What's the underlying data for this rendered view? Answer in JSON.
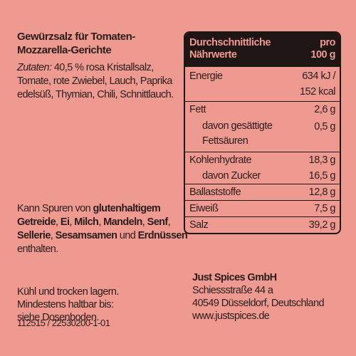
{
  "title": [
    "Gewürzsalz für Tomaten-",
    "Mozzarella-Gerichte"
  ],
  "ingredients": {
    "label": "Zutaten:",
    "lines": [
      " 40,5 % rosa Kristallsalz,",
      "Tomate, rote Zwiebel, Lauch, Paprika",
      "edelsüß, Thymian, Chili, Schnittlauch."
    ]
  },
  "allergens": {
    "segments": [
      {
        "t": "Kann Spuren von ",
        "b": false
      },
      {
        "t": "glutenhaltigem",
        "b": true
      },
      {
        "t": " ",
        "b": false
      },
      {
        "t": "Getreide",
        "b": true
      },
      {
        "t": ", ",
        "b": false
      },
      {
        "t": "Ei",
        "b": true
      },
      {
        "t": ", ",
        "b": false
      },
      {
        "t": "Milch",
        "b": true
      },
      {
        "t": ", ",
        "b": false
      },
      {
        "t": "Mandeln",
        "b": true
      },
      {
        "t": ", ",
        "b": false
      },
      {
        "t": "Senf",
        "b": true
      },
      {
        "t": ", ",
        "b": false
      },
      {
        "t": "Sellerie",
        "b": true
      },
      {
        "t": ", ",
        "b": false
      },
      {
        "t": "Sesamsamen",
        "b": true
      },
      {
        "t": " und ",
        "b": false
      },
      {
        "t": "Erdnüssen",
        "b": true
      },
      {
        "t": " enthalten.",
        "b": false
      }
    ]
  },
  "storage": [
    "Kühl und trocken lagern.",
    "Mindestens haltbar bis:",
    "siehe Dosenboden."
  ],
  "code": "112515 / 22530200-1-01",
  "company": {
    "name": "Just Spices GmbH",
    "street": "Schiessstraße 44 a",
    "city": "40549 Düsseldorf, Deutschland",
    "web": "www.justspices.de"
  },
  "nutrition": {
    "header_left": [
      "Durchschnittliche",
      "Nährwerte"
    ],
    "header_right": [
      "pro",
      "100 g"
    ],
    "rows": [
      {
        "label": [
          "Energie",
          ""
        ],
        "value": [
          "634 kJ /",
          "152 kcal"
        ],
        "sub": false
      },
      {
        "label": [
          "Fett"
        ],
        "value": [
          "2,6 g"
        ],
        "sub": false
      },
      {
        "label": [
          "davon gesättigte",
          "Fettsäuren"
        ],
        "value": [
          "0,5 g",
          ""
        ],
        "sub": true
      },
      {
        "label": [
          "Kohlenhydrate"
        ],
        "value": [
          "18,3 g"
        ],
        "sub": false
      },
      {
        "label": [
          "davon Zucker"
        ],
        "value": [
          "16,5 g"
        ],
        "sub": true
      },
      {
        "label": [
          "Ballaststoffe"
        ],
        "value": [
          "12,8 g"
        ],
        "sub": false
      },
      {
        "label": [
          "Eiweiß"
        ],
        "value": [
          "7,5 g"
        ],
        "sub": false
      },
      {
        "label": [
          "Salz"
        ],
        "value": [
          "39,2 g"
        ],
        "sub": false
      }
    ]
  }
}
